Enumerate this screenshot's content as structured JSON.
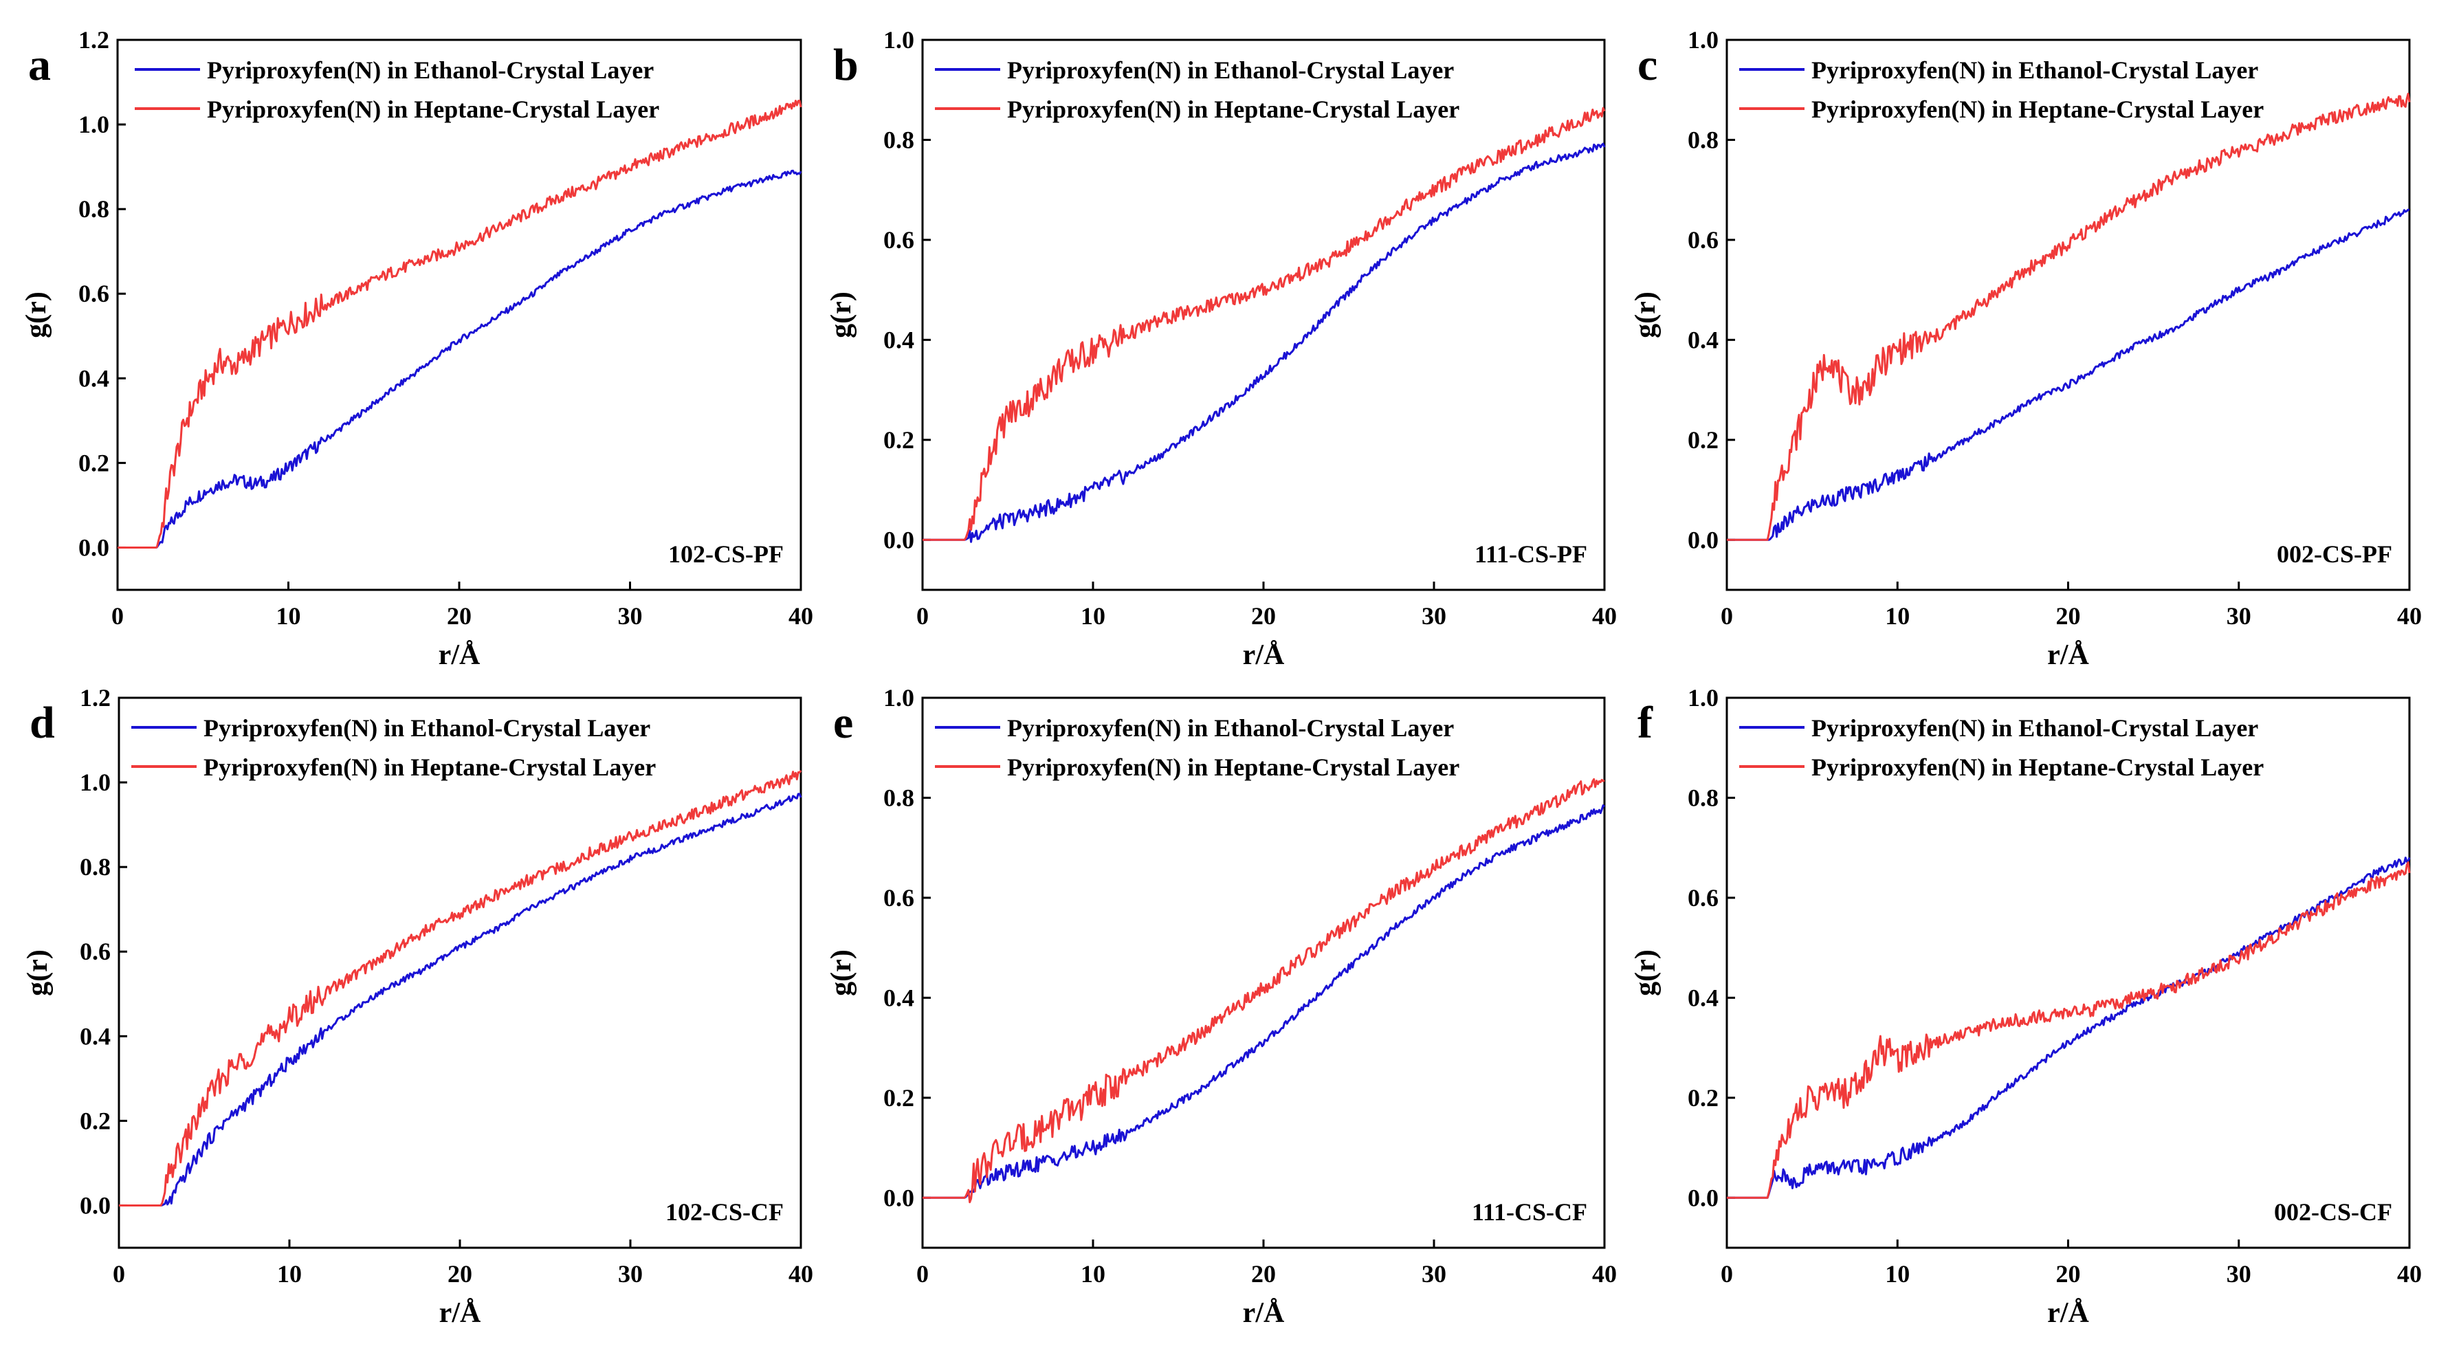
{
  "colors": {
    "ethanol": "#1a12d4",
    "heptane": "#f03a3a",
    "axis": "#000000"
  },
  "chart_data": [
    {
      "panel": "a",
      "type": "line",
      "annotation": "102-CS-PF",
      "xlabel": "r/Å",
      "ylabel": "g(r)",
      "xlim": [
        0,
        40
      ],
      "ylim": [
        -0.1,
        1.2
      ],
      "xticks": [
        0,
        10,
        20,
        30,
        40
      ],
      "xtick_labels": [
        "0",
        "10",
        "20",
        "30",
        "40"
      ],
      "yticks": [
        0.0,
        0.2,
        0.4,
        0.6,
        0.8,
        1.0,
        1.2
      ],
      "ytick_labels": [
        "0.0",
        "0.2",
        "0.4",
        "0.6",
        "0.8",
        "1.0",
        "1.2"
      ],
      "legend_position": "top-left",
      "series": [
        {
          "name": "Pyriproxyfen(N) in Ethanol-Crystal Layer",
          "color_key": "ethanol",
          "x": [
            0,
            2.3,
            2.6,
            3,
            4,
            5,
            6,
            7,
            8,
            9,
            10,
            12,
            14,
            16,
            18,
            20,
            22,
            24,
            26,
            28,
            30,
            32,
            34,
            36,
            38,
            40
          ],
          "y": [
            0,
            0,
            0.02,
            0.05,
            0.1,
            0.13,
            0.15,
            0.16,
            0.15,
            0.16,
            0.19,
            0.25,
            0.31,
            0.37,
            0.43,
            0.49,
            0.54,
            0.59,
            0.65,
            0.7,
            0.75,
            0.79,
            0.82,
            0.85,
            0.87,
            0.89
          ]
        },
        {
          "name": "Pyriproxyfen(N) in Heptane-Crystal Layer",
          "color_key": "heptane",
          "x": [
            0,
            2.3,
            2.6,
            3,
            4,
            5,
            6,
            7,
            8,
            9,
            10,
            12,
            14,
            16,
            18,
            20,
            22,
            24,
            26,
            28,
            30,
            32,
            34,
            36,
            38,
            40
          ],
          "y": [
            0,
            0,
            0.05,
            0.15,
            0.3,
            0.38,
            0.44,
            0.43,
            0.47,
            0.5,
            0.53,
            0.57,
            0.61,
            0.65,
            0.68,
            0.71,
            0.75,
            0.79,
            0.83,
            0.86,
            0.9,
            0.93,
            0.96,
            0.99,
            1.02,
            1.05
          ]
        }
      ]
    },
    {
      "panel": "b",
      "type": "line",
      "annotation": "111-CS-PF",
      "xlabel": "r/Å",
      "ylabel": "g(r)",
      "xlim": [
        0,
        40
      ],
      "ylim": [
        -0.1,
        1.0
      ],
      "xticks": [
        0,
        10,
        20,
        30,
        40
      ],
      "xtick_labels": [
        "0",
        "10",
        "20",
        "30",
        "40"
      ],
      "yticks": [
        0.0,
        0.2,
        0.4,
        0.6,
        0.8,
        1.0
      ],
      "ytick_labels": [
        "0.0",
        "0.2",
        "0.4",
        "0.6",
        "0.8",
        "1.0"
      ],
      "legend_position": "top",
      "series": [
        {
          "name": "Pyriproxyfen(N) in Ethanol-Crystal Layer",
          "color_key": "ethanol",
          "x": [
            0,
            2.5,
            3,
            4,
            5,
            6,
            8,
            10,
            12,
            14,
            16,
            18,
            20,
            22,
            24,
            26,
            28,
            30,
            32,
            34,
            36,
            38,
            40
          ],
          "y": [
            0,
            0,
            0.01,
            0.03,
            0.04,
            0.05,
            0.07,
            0.1,
            0.13,
            0.17,
            0.22,
            0.27,
            0.33,
            0.39,
            0.46,
            0.53,
            0.59,
            0.64,
            0.68,
            0.72,
            0.75,
            0.77,
            0.79
          ]
        },
        {
          "name": "Pyriproxyfen(N) in Heptane-Crystal Layer",
          "color_key": "heptane",
          "x": [
            0,
            2.5,
            3,
            4,
            5,
            6,
            7,
            8,
            10,
            12,
            14,
            16,
            18,
            20,
            22,
            24,
            26,
            28,
            30,
            32,
            34,
            36,
            38,
            40
          ],
          "y": [
            0,
            0,
            0.05,
            0.18,
            0.25,
            0.27,
            0.3,
            0.34,
            0.38,
            0.41,
            0.44,
            0.46,
            0.48,
            0.5,
            0.53,
            0.56,
            0.61,
            0.66,
            0.7,
            0.74,
            0.77,
            0.8,
            0.83,
            0.86
          ]
        }
      ]
    },
    {
      "panel": "c",
      "type": "line",
      "annotation": "002-CS-PF",
      "xlabel": "r/Å",
      "ylabel": "g(r)",
      "xlim": [
        0,
        40
      ],
      "ylim": [
        -0.1,
        1.0
      ],
      "xticks": [
        0,
        10,
        20,
        30,
        40
      ],
      "xtick_labels": [
        "0",
        "10",
        "20",
        "30",
        "40"
      ],
      "yticks": [
        0.0,
        0.2,
        0.4,
        0.6,
        0.8,
        1.0
      ],
      "ytick_labels": [
        "0.0",
        "0.2",
        "0.4",
        "0.6",
        "0.8",
        "1.0"
      ],
      "legend_position": "top",
      "series": [
        {
          "name": "Pyriproxyfen(N) in Ethanol-Crystal Layer",
          "color_key": "ethanol",
          "x": [
            0,
            2.5,
            3,
            4,
            5,
            6,
            8,
            10,
            12,
            14,
            16,
            18,
            20,
            22,
            24,
            26,
            28,
            30,
            32,
            34,
            36,
            38,
            40
          ],
          "y": [
            0,
            0,
            0.02,
            0.05,
            0.07,
            0.08,
            0.1,
            0.13,
            0.16,
            0.2,
            0.24,
            0.28,
            0.31,
            0.35,
            0.39,
            0.42,
            0.46,
            0.5,
            0.53,
            0.57,
            0.6,
            0.63,
            0.66
          ]
        },
        {
          "name": "Pyriproxyfen(N) in Heptane-Crystal Layer",
          "color_key": "heptane",
          "x": [
            0,
            2.4,
            3,
            4,
            5,
            6,
            7,
            8,
            9,
            10,
            12,
            14,
            16,
            18,
            20,
            22,
            24,
            26,
            28,
            30,
            32,
            34,
            36,
            38,
            40
          ],
          "y": [
            0,
            0,
            0.12,
            0.2,
            0.3,
            0.37,
            0.3,
            0.3,
            0.35,
            0.38,
            0.4,
            0.45,
            0.5,
            0.55,
            0.59,
            0.64,
            0.68,
            0.72,
            0.75,
            0.78,
            0.8,
            0.83,
            0.85,
            0.87,
            0.88
          ]
        }
      ]
    },
    {
      "panel": "d",
      "type": "line",
      "annotation": "102-CS-CF",
      "xlabel": "r/Å",
      "ylabel": "g(r)",
      "xlim": [
        0,
        40
      ],
      "ylim": [
        -0.1,
        1.2
      ],
      "xticks": [
        0,
        10,
        20,
        30,
        40
      ],
      "xtick_labels": [
        "0",
        "10",
        "20",
        "30",
        "40"
      ],
      "yticks": [
        0.0,
        0.2,
        0.4,
        0.6,
        0.8,
        1.0,
        1.2
      ],
      "ytick_labels": [
        "0.0",
        "0.2",
        "0.4",
        "0.6",
        "0.8",
        "1.0",
        "1.2"
      ],
      "legend_position": "top",
      "series": [
        {
          "name": "Pyriproxyfen(N) in Ethanol-Crystal Layer",
          "color_key": "ethanol",
          "x": [
            0,
            2.5,
            3,
            4,
            5,
            6,
            8,
            10,
            12,
            14,
            16,
            18,
            20,
            22,
            24,
            26,
            28,
            30,
            32,
            34,
            36,
            38,
            40
          ],
          "y": [
            0,
            0,
            0.01,
            0.08,
            0.14,
            0.19,
            0.26,
            0.34,
            0.41,
            0.47,
            0.52,
            0.56,
            0.61,
            0.65,
            0.7,
            0.74,
            0.78,
            0.82,
            0.85,
            0.88,
            0.91,
            0.94,
            0.97
          ]
        },
        {
          "name": "Pyriproxyfen(N) in Heptane-Crystal Layer",
          "color_key": "heptane",
          "x": [
            0,
            2.5,
            3,
            4,
            5,
            6,
            8,
            10,
            12,
            14,
            16,
            18,
            20,
            22,
            24,
            26,
            28,
            30,
            32,
            34,
            36,
            38,
            40
          ],
          "y": [
            0,
            0,
            0.08,
            0.16,
            0.24,
            0.3,
            0.37,
            0.44,
            0.5,
            0.55,
            0.6,
            0.65,
            0.69,
            0.73,
            0.77,
            0.8,
            0.84,
            0.87,
            0.9,
            0.93,
            0.96,
            0.99,
            1.02
          ]
        }
      ]
    },
    {
      "panel": "e",
      "type": "line",
      "annotation": "111-CS-CF",
      "xlabel": "r/Å",
      "ylabel": "g(r)",
      "xlim": [
        0,
        40
      ],
      "ylim": [
        -0.1,
        1.0
      ],
      "xticks": [
        0,
        10,
        20,
        30,
        40
      ],
      "xtick_labels": [
        "0",
        "10",
        "20",
        "30",
        "40"
      ],
      "yticks": [
        0.0,
        0.2,
        0.4,
        0.6,
        0.8,
        1.0
      ],
      "ytick_labels": [
        "0.0",
        "0.2",
        "0.4",
        "0.6",
        "0.8",
        "1.0"
      ],
      "legend_position": "top",
      "series": [
        {
          "name": "Pyriproxyfen(N) in Ethanol-Crystal Layer",
          "color_key": "ethanol",
          "x": [
            0,
            2.5,
            3,
            4,
            5,
            6,
            8,
            10,
            12,
            14,
            16,
            18,
            20,
            22,
            24,
            26,
            28,
            30,
            32,
            34,
            36,
            38,
            40
          ],
          "y": [
            0,
            0,
            0.02,
            0.04,
            0.05,
            0.06,
            0.08,
            0.1,
            0.13,
            0.17,
            0.21,
            0.26,
            0.31,
            0.37,
            0.43,
            0.49,
            0.55,
            0.6,
            0.65,
            0.69,
            0.72,
            0.75,
            0.78
          ]
        },
        {
          "name": "Pyriproxyfen(N) in Heptane-Crystal Layer",
          "color_key": "heptane",
          "x": [
            0,
            2.5,
            3,
            4,
            5,
            6,
            8,
            10,
            12,
            14,
            16,
            18,
            20,
            22,
            24,
            26,
            28,
            30,
            32,
            34,
            36,
            38,
            40
          ],
          "y": [
            0,
            0,
            0.04,
            0.08,
            0.11,
            0.12,
            0.16,
            0.2,
            0.24,
            0.28,
            0.32,
            0.37,
            0.42,
            0.47,
            0.52,
            0.57,
            0.62,
            0.66,
            0.7,
            0.74,
            0.77,
            0.81,
            0.84
          ]
        }
      ]
    },
    {
      "panel": "f",
      "type": "line",
      "annotation": "002-CS-CF",
      "xlabel": "r/Å",
      "ylabel": "g(r)",
      "xlim": [
        0,
        40
      ],
      "ylim": [
        -0.1,
        1.0
      ],
      "xticks": [
        0,
        10,
        20,
        30,
        40
      ],
      "xtick_labels": [
        "0",
        "10",
        "20",
        "30",
        "40"
      ],
      "yticks": [
        0.0,
        0.2,
        0.4,
        0.6,
        0.8,
        1.0
      ],
      "ytick_labels": [
        "0.0",
        "0.2",
        "0.4",
        "0.6",
        "0.8",
        "1.0"
      ],
      "legend_position": "top",
      "series": [
        {
          "name": "Pyriproxyfen(N) in Ethanol-Crystal Layer",
          "color_key": "ethanol",
          "x": [
            0,
            2.4,
            2.8,
            4,
            5,
            6,
            8,
            10,
            12,
            14,
            16,
            18,
            20,
            22,
            24,
            26,
            28,
            30,
            32,
            34,
            36,
            38,
            40
          ],
          "y": [
            0,
            0,
            0.05,
            0.03,
            0.06,
            0.06,
            0.06,
            0.08,
            0.11,
            0.15,
            0.21,
            0.26,
            0.31,
            0.35,
            0.39,
            0.42,
            0.45,
            0.49,
            0.53,
            0.57,
            0.61,
            0.65,
            0.68
          ]
        },
        {
          "name": "Pyriproxyfen(N) in Heptane-Crystal Layer",
          "color_key": "heptane",
          "x": [
            0,
            2.4,
            3,
            4,
            5,
            6,
            7,
            8,
            9,
            10,
            12,
            14,
            16,
            18,
            20,
            22,
            24,
            26,
            28,
            30,
            32,
            34,
            36,
            38,
            40
          ],
          "y": [
            0,
            0,
            0.1,
            0.17,
            0.2,
            0.21,
            0.21,
            0.24,
            0.3,
            0.28,
            0.31,
            0.33,
            0.35,
            0.36,
            0.37,
            0.38,
            0.4,
            0.42,
            0.45,
            0.48,
            0.52,
            0.56,
            0.6,
            0.63,
            0.66
          ]
        }
      ]
    }
  ]
}
